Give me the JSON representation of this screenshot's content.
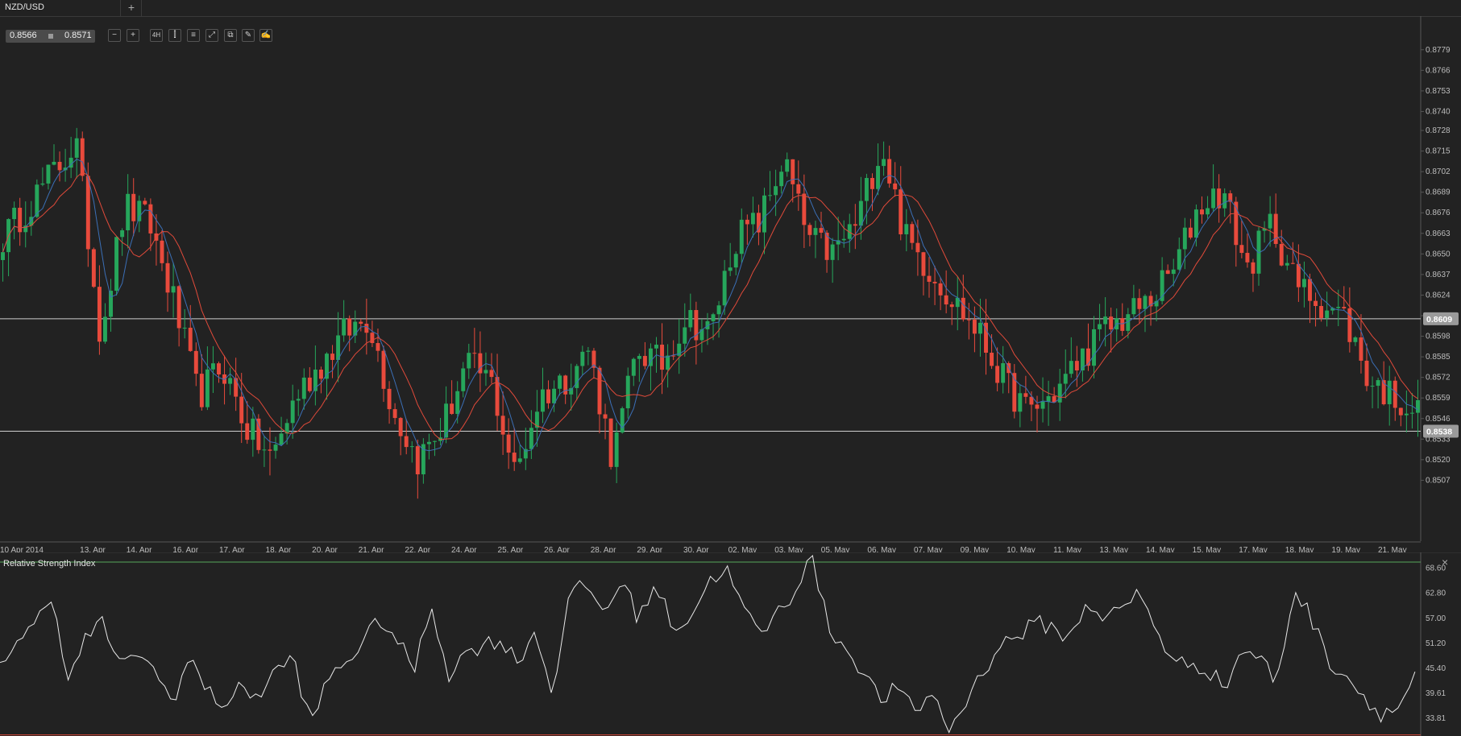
{
  "tab": {
    "symbol": "NZD/USD",
    "add_label": "+"
  },
  "quote": {
    "bid": "0.8566",
    "ask": "0.8571"
  },
  "toolbar": {
    "zoom_out": "−",
    "zoom_in": "+",
    "timeframe": "4H",
    "chart_type": "⫿",
    "indicators": "≡",
    "fit": "⤢",
    "copy": "⧉",
    "edit": "✎",
    "draw": "✍"
  },
  "colors": {
    "background": "#222222",
    "bull": "#26a65b",
    "bear": "#e84a3c",
    "ma_fast": "#3b6fb6",
    "ma_slow": "#e04a3a",
    "rsi_line": "#e8e8e8",
    "rsi_upper": "#56a85a",
    "rsi_lower": "#d94a3a"
  },
  "chart_data": [
    {
      "type": "candlestick",
      "title": "NZD/USD",
      "ylim": [
        0.8495,
        0.8785
      ],
      "y_ticks": [
        "0.8779",
        "0.8766",
        "0.8753",
        "0.8740",
        "0.8728",
        "0.8715",
        "0.8702",
        "0.8689",
        "0.8676",
        "0.8663",
        "0.8650",
        "0.8637",
        "0.8624",
        "0.8611",
        "0.8598",
        "0.8585",
        "0.8572",
        "0.8559",
        "0.8546",
        "0.8533",
        "0.8520",
        "0.8507"
      ],
      "x_ticks": [
        "10 Apr 2014",
        "13. Apr",
        "14. Apr",
        "16. Apr",
        "17. Apr",
        "18. Apr",
        "20. Apr",
        "21. Apr",
        "22. Apr",
        "24. Apr",
        "25. Apr",
        "26. Apr",
        "28. Apr",
        "29. Apr",
        "30. Apr",
        "02. May",
        "03. May",
        "05. May",
        "06. May",
        "07. May",
        "09. May",
        "10. May",
        "11. May",
        "13. May",
        "14. May",
        "15. May",
        "17. May",
        "18. May",
        "19. May",
        "21. May"
      ],
      "horizontal_lines": [
        {
          "label": "0.8609",
          "value": 0.8609
        },
        {
          "label": "0.8538",
          "value": 0.8538
        }
      ],
      "moving_averages": [
        "fast",
        "slow"
      ],
      "candles_anchor_closes": [
        0.866,
        0.868,
        0.87,
        0.872,
        0.86,
        0.868,
        0.867,
        0.862,
        0.856,
        0.858,
        0.854,
        0.852,
        0.856,
        0.858,
        0.86,
        0.861,
        0.855,
        0.852,
        0.854,
        0.858,
        0.857,
        0.851,
        0.856,
        0.857,
        0.859,
        0.852,
        0.859,
        0.858,
        0.861,
        0.86,
        0.866,
        0.867,
        0.871,
        0.866,
        0.865,
        0.867,
        0.872,
        0.866,
        0.864,
        0.862,
        0.86,
        0.857,
        0.855,
        0.856,
        0.858,
        0.86,
        0.861,
        0.862,
        0.864,
        0.868,
        0.869,
        0.864,
        0.867,
        0.863,
        0.862,
        0.861,
        0.857,
        0.856,
        0.855
      ]
    },
    {
      "type": "line",
      "title": "Relative Strength Index",
      "ylim": [
        30.5,
        71.5
      ],
      "y_ticks": [
        "68.60",
        "62.80",
        "57.00",
        "51.20",
        "45.40",
        "39.61",
        "33.81"
      ],
      "upper_level": 70,
      "lower_level": 30,
      "rsi_anchor_values": [
        47,
        52,
        55,
        63,
        42,
        53,
        56,
        45,
        50,
        44,
        38,
        48,
        40,
        37,
        41,
        39,
        45,
        48,
        32,
        43,
        47,
        51,
        57,
        52,
        45,
        60,
        44,
        49,
        51,
        52,
        47,
        54,
        40,
        62,
        65,
        58,
        66,
        57,
        65,
        55,
        57,
        65,
        69,
        60,
        53,
        58,
        63,
        72,
        55,
        50,
        45,
        38,
        41,
        35,
        40,
        31,
        38,
        45,
        51,
        53,
        56,
        55,
        52,
        61,
        57,
        59,
        63,
        55,
        46,
        47,
        45,
        41,
        50,
        48,
        42,
        64,
        57,
        47,
        44,
        39,
        35,
        36,
        44
      ]
    }
  ]
}
